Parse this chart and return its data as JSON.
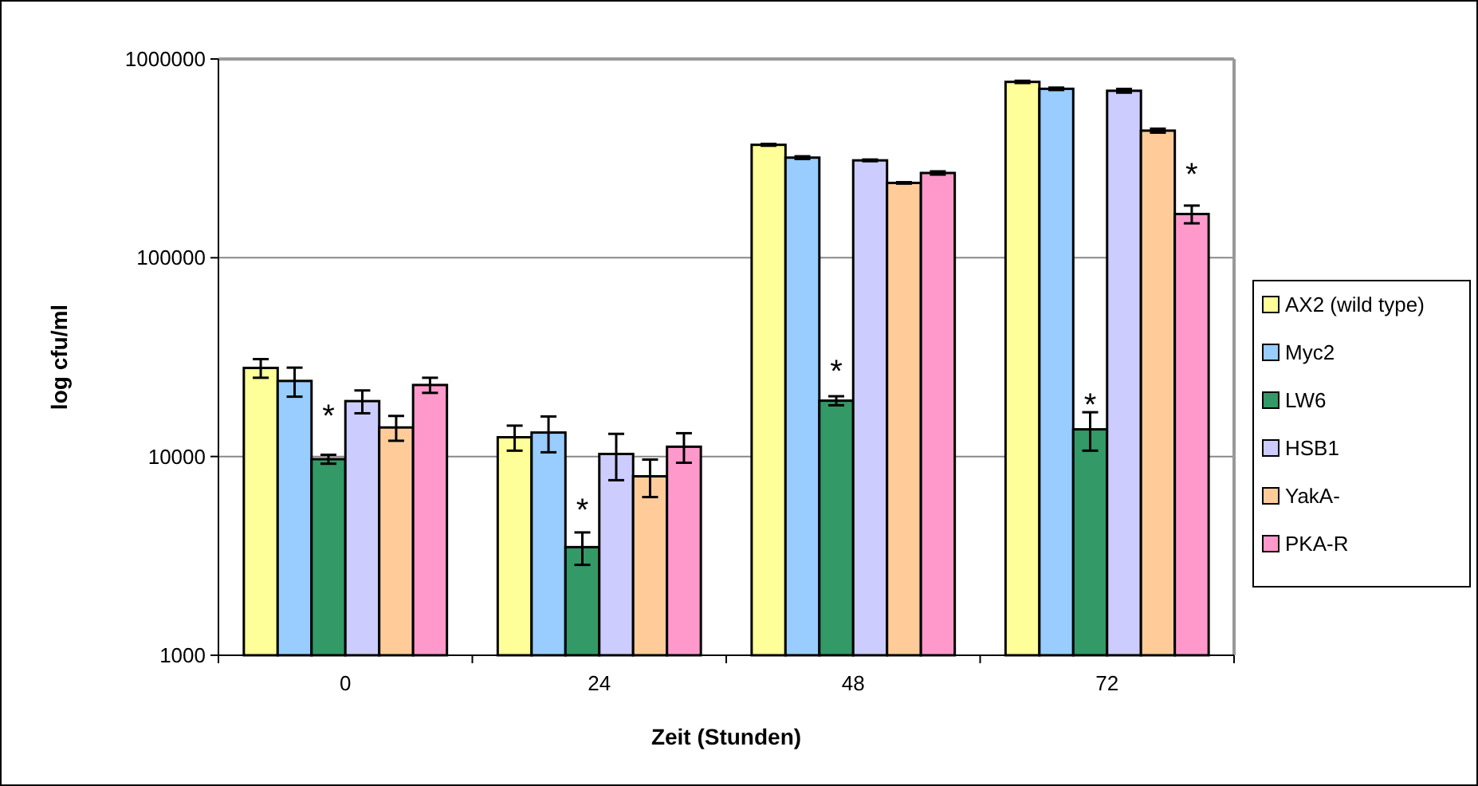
{
  "chart_data": {
    "type": "bar",
    "xlabel": "Zeit (Stunden)",
    "ylabel": "log cfu/ml",
    "categories": [
      "0",
      "24",
      "48",
      "72"
    ],
    "log": true,
    "ylim": [
      1000,
      1000000
    ],
    "yticks": [
      1000,
      10000,
      100000,
      1000000
    ],
    "grid": "y",
    "legend": "right",
    "series": [
      {
        "name": "AX2 (wild type)",
        "color": "#ffff99",
        "values": [
          27900,
          12500,
          370000,
          767000
        ],
        "errors": [
          3000,
          1800,
          4000,
          10000
        ]
      },
      {
        "name": "Myc2",
        "color": "#99ccff",
        "values": [
          24000,
          13200,
          319000,
          708000
        ],
        "errors": [
          4000,
          2700,
          5000,
          10000
        ]
      },
      {
        "name": "LW6",
        "color": "#339966",
        "values": [
          9700,
          3500,
          19100,
          13700
        ],
        "errors": [
          500,
          650,
          1000,
          3000
        ]
      },
      {
        "name": "HSB1",
        "color": "#ccccff",
        "values": [
          19000,
          10300,
          309000,
          692000
        ],
        "errors": [
          2500,
          2700,
          3000,
          15000
        ]
      },
      {
        "name": "YakA-",
        "color": "#ffcc99",
        "values": [
          14000,
          7950,
          238000,
          436000
        ],
        "errors": [
          2000,
          1700,
          2000,
          10000
        ]
      },
      {
        "name": "PKA-R",
        "color": "#ff99cc",
        "values": [
          22900,
          11200,
          267000,
          166000
        ],
        "errors": [
          2000,
          1900,
          5000,
          17000
        ]
      }
    ],
    "annotations": [
      {
        "text": "*",
        "x": "0",
        "y": 16400
      },
      {
        "text": "*",
        "x": "24",
        "y": 5500
      },
      {
        "text": "*",
        "x": "48",
        "y": 27500
      },
      {
        "text": "*",
        "x": "72",
        "y": 18600
      },
      {
        "text": "*",
        "x": "72",
        "y": 270000
      }
    ]
  }
}
